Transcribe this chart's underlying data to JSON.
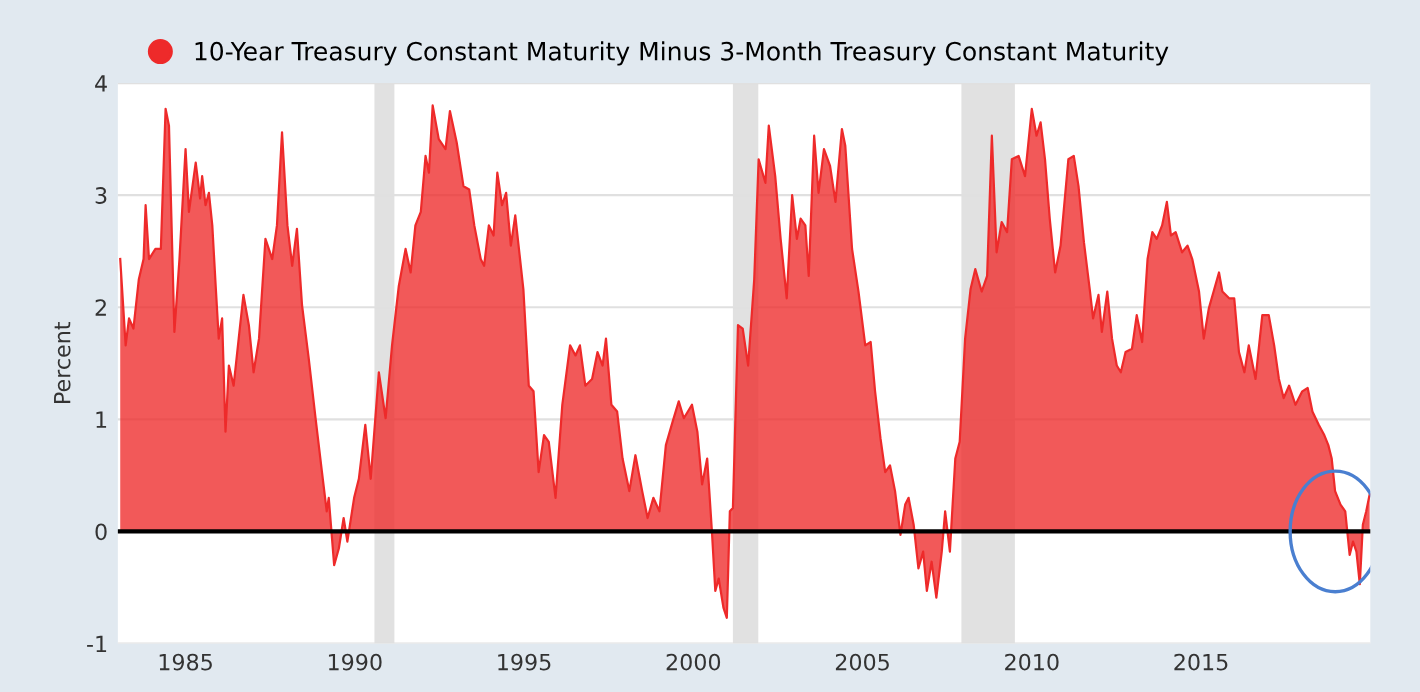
{
  "chart_data": {
    "type": "area",
    "ylabel": "Percent",
    "legend": "top left",
    "grid": "y",
    "xlim": [
      1983,
      2020
    ],
    "ylim": [
      -1,
      4
    ],
    "xticks": [
      1985,
      1990,
      1995,
      2000,
      2005,
      2010,
      2015
    ],
    "yticks": [
      -1,
      0,
      1,
      2,
      3,
      4
    ],
    "ref_lines": [
      {
        "axis": "y",
        "value": 0,
        "color": "#000000"
      }
    ],
    "bands": [
      {
        "axis": "x",
        "from": 1990.58,
        "to": 1991.17,
        "color": "#e1e1e1"
      },
      {
        "axis": "x",
        "from": 2001.17,
        "to": 2001.92,
        "color": "#e1e1e1"
      },
      {
        "axis": "x",
        "from": 2007.92,
        "to": 2009.5,
        "color": "#e1e1e1"
      }
    ],
    "series": [
      {
        "name": "10-Year Treasury Constant Maturity Minus 3-Month Treasury Constant Maturity",
        "color": "#ee2a2a",
        "x": [
          1983.07,
          1983.23,
          1983.33,
          1983.46,
          1983.62,
          1983.76,
          1983.82,
          1983.92,
          1984.11,
          1984.27,
          1984.41,
          1984.51,
          1984.67,
          1984.82,
          1985.0,
          1985.1,
          1985.3,
          1985.43,
          1985.49,
          1985.59,
          1985.69,
          1985.79,
          1985.89,
          1985.98,
          1986.08,
          1986.18,
          1986.28,
          1986.42,
          1986.57,
          1986.71,
          1986.87,
          1987.01,
          1987.17,
          1987.36,
          1987.56,
          1987.7,
          1987.85,
          1988.01,
          1988.15,
          1988.29,
          1988.44,
          1988.64,
          1988.84,
          1989.03,
          1989.17,
          1989.23,
          1989.39,
          1989.53,
          1989.67,
          1989.78,
          1989.98,
          1990.12,
          1990.31,
          1990.47,
          1990.71,
          1990.91,
          1991.1,
          1991.3,
          1991.5,
          1991.65,
          1991.79,
          1991.95,
          1992.09,
          1992.19,
          1992.3,
          1992.48,
          1992.68,
          1992.81,
          1993.01,
          1993.21,
          1993.38,
          1993.53,
          1993.72,
          1993.82,
          1993.96,
          1994.1,
          1994.21,
          1994.35,
          1994.47,
          1994.61,
          1994.74,
          1994.98,
          1995.14,
          1995.28,
          1995.43,
          1995.59,
          1995.73,
          1995.93,
          1996.13,
          1996.36,
          1996.52,
          1996.65,
          1996.81,
          1997.01,
          1997.17,
          1997.32,
          1997.42,
          1997.58,
          1997.75,
          1997.91,
          1998.11,
          1998.29,
          1998.49,
          1998.65,
          1998.82,
          1999.0,
          1999.19,
          1999.39,
          1999.57,
          1999.72,
          1999.96,
          2000.12,
          2000.26,
          2000.41,
          2000.55,
          2000.65,
          2000.75,
          2000.89,
          2000.99,
          2001.08,
          2001.17,
          2001.32,
          2001.46,
          2001.62,
          2001.8,
          2001.93,
          2002.13,
          2002.23,
          2002.42,
          2002.58,
          2002.76,
          2002.92,
          2003.06,
          2003.17,
          2003.31,
          2003.41,
          2003.57,
          2003.7,
          2003.86,
          2004.04,
          2004.2,
          2004.39,
          2004.49,
          2004.69,
          2004.88,
          2005.08,
          2005.24,
          2005.37,
          2005.53,
          2005.67,
          2005.81,
          2005.96,
          2006.12,
          2006.26,
          2006.36,
          2006.51,
          2006.65,
          2006.79,
          2006.9,
          2007.04,
          2007.18,
          2007.34,
          2007.44,
          2007.58,
          2007.74,
          2007.87,
          2008.03,
          2008.19,
          2008.33,
          2008.52,
          2008.68,
          2008.82,
          2008.96,
          2009.11,
          2009.27,
          2009.41,
          2009.61,
          2009.8,
          2010.0,
          2010.14,
          2010.26,
          2010.39,
          2010.53,
          2010.69,
          2010.85,
          2011.08,
          2011.24,
          2011.38,
          2011.54,
          2011.72,
          2011.81,
          2011.97,
          2012.07,
          2012.23,
          2012.37,
          2012.51,
          2012.63,
          2012.77,
          2012.96,
          2013.1,
          2013.26,
          2013.42,
          2013.56,
          2013.69,
          2013.85,
          2013.99,
          2014.11,
          2014.25,
          2014.44,
          2014.6,
          2014.74,
          2014.94,
          2015.08,
          2015.23,
          2015.39,
          2015.53,
          2015.63,
          2015.83,
          2015.98,
          2016.12,
          2016.28,
          2016.41,
          2016.61,
          2016.81,
          2017.0,
          2017.16,
          2017.3,
          2017.44,
          2017.6,
          2017.79,
          2017.99,
          2018.15,
          2018.29,
          2018.48,
          2018.64,
          2018.76,
          2018.86,
          2018.96,
          2019.12,
          2019.26,
          2019.39,
          2019.49,
          2019.59,
          2019.69,
          2019.78,
          2019.88,
          2019.98
        ],
        "values": [
          2.43,
          1.66,
          1.9,
          1.81,
          2.25,
          2.43,
          2.91,
          2.43,
          2.52,
          2.52,
          3.77,
          3.62,
          1.78,
          2.43,
          3.41,
          2.85,
          3.29,
          2.97,
          3.17,
          2.91,
          3.02,
          2.73,
          2.19,
          1.72,
          1.9,
          0.89,
          1.48,
          1.3,
          1.72,
          2.11,
          1.84,
          1.42,
          1.72,
          2.61,
          2.43,
          2.73,
          3.56,
          2.73,
          2.37,
          2.7,
          2.02,
          1.54,
          1.01,
          0.53,
          0.18,
          0.3,
          -0.3,
          -0.15,
          0.12,
          -0.09,
          0.3,
          0.47,
          0.95,
          0.47,
          1.42,
          1.01,
          1.66,
          2.19,
          2.52,
          2.31,
          2.73,
          2.85,
          3.35,
          3.2,
          3.8,
          3.5,
          3.41,
          3.75,
          3.47,
          3.08,
          3.05,
          2.73,
          2.43,
          2.37,
          2.73,
          2.64,
          3.2,
          2.91,
          3.02,
          2.55,
          2.82,
          2.16,
          1.3,
          1.25,
          0.53,
          0.86,
          0.8,
          0.3,
          1.13,
          1.66,
          1.57,
          1.66,
          1.3,
          1.36,
          1.6,
          1.48,
          1.72,
          1.13,
          1.07,
          0.65,
          0.36,
          0.68,
          0.36,
          0.12,
          0.3,
          0.18,
          0.77,
          0.98,
          1.16,
          1.01,
          1.13,
          0.89,
          0.42,
          0.65,
          0.0,
          -0.53,
          -0.42,
          -0.68,
          -0.77,
          0.18,
          0.21,
          1.84,
          1.81,
          1.48,
          2.25,
          3.32,
          3.11,
          3.62,
          3.17,
          2.61,
          2.08,
          3.0,
          2.61,
          2.79,
          2.73,
          2.28,
          3.53,
          3.02,
          3.41,
          3.26,
          2.94,
          3.59,
          3.44,
          2.52,
          2.14,
          1.66,
          1.69,
          1.25,
          0.83,
          0.53,
          0.59,
          0.36,
          -0.03,
          0.24,
          0.3,
          0.06,
          -0.33,
          -0.18,
          -0.53,
          -0.27,
          -0.59,
          -0.18,
          0.18,
          -0.18,
          0.65,
          0.8,
          1.72,
          2.16,
          2.34,
          2.14,
          2.28,
          3.53,
          2.49,
          2.76,
          2.67,
          3.32,
          3.35,
          3.17,
          3.77,
          3.53,
          3.65,
          3.32,
          2.79,
          2.31,
          2.55,
          3.32,
          3.35,
          3.08,
          2.58,
          2.14,
          1.9,
          2.11,
          1.78,
          2.14,
          1.72,
          1.48,
          1.42,
          1.6,
          1.63,
          1.93,
          1.69,
          2.43,
          2.67,
          2.61,
          2.73,
          2.94,
          2.64,
          2.67,
          2.49,
          2.55,
          2.43,
          2.14,
          1.72,
          1.99,
          2.16,
          2.31,
          2.14,
          2.08,
          2.08,
          1.6,
          1.42,
          1.66,
          1.36,
          1.93,
          1.93,
          1.66,
          1.36,
          1.19,
          1.3,
          1.13,
          1.25,
          1.28,
          1.07,
          0.95,
          0.86,
          0.77,
          0.65,
          0.36,
          0.24,
          0.18,
          -0.21,
          -0.09,
          -0.18,
          -0.47,
          0.06,
          0.18,
          0.33
        ]
      }
    ]
  }
}
